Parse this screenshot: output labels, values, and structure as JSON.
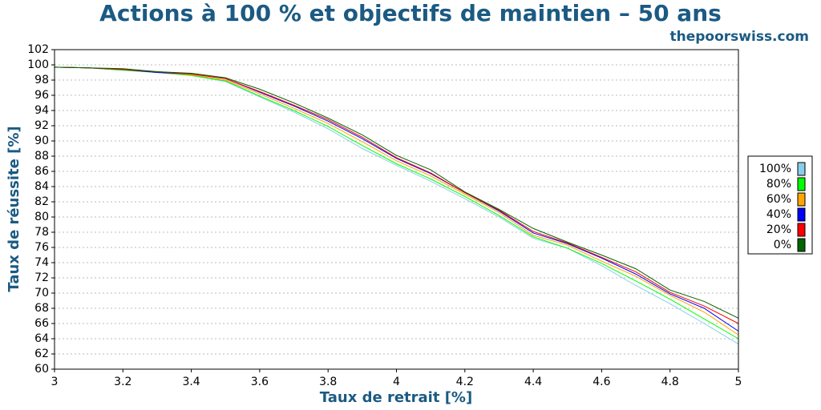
{
  "chart_data": {
    "type": "line",
    "title": "Actions à 100 % et objectifs de maintien – 50 ans",
    "subtitle": "thepoorswiss.com",
    "x_label": "Taux de retrait [%]",
    "y_label": "Taux de réussite [%]",
    "x": [
      3,
      3.1,
      3.2,
      3.3,
      3.4,
      3.5,
      3.6,
      3.7,
      3.8,
      3.9,
      4,
      4.1,
      4.2,
      4.3,
      4.4,
      4.5,
      4.6,
      4.7,
      4.8,
      4.9,
      5
    ],
    "series": [
      {
        "name": "100%",
        "color": "#87ceeb",
        "values": [
          99.7,
          99.6,
          99.3,
          99.0,
          98.6,
          97.8,
          95.8,
          93.8,
          91.6,
          89.0,
          86.8,
          84.7,
          82.4,
          80.0,
          77.2,
          75.9,
          73.6,
          71.0,
          68.6,
          66.0,
          63.3
        ]
      },
      {
        "name": "80%",
        "color": "#00ff00",
        "values": [
          99.7,
          99.6,
          99.3,
          99.0,
          98.6,
          97.9,
          95.9,
          94.0,
          91.9,
          89.4,
          87.0,
          85.0,
          82.7,
          80.2,
          77.4,
          75.9,
          73.9,
          71.6,
          69.2,
          66.6,
          64.0
        ]
      },
      {
        "name": "60%",
        "color": "#ffa500",
        "values": [
          99.7,
          99.6,
          99.4,
          99.0,
          98.7,
          98.0,
          96.2,
          94.3,
          92.3,
          89.9,
          87.4,
          85.4,
          83.0,
          80.6,
          77.6,
          76.3,
          74.2,
          72.2,
          69.7,
          67.5,
          64.5
        ]
      },
      {
        "name": "40%",
        "color": "#0000ff",
        "values": [
          99.7,
          99.6,
          99.4,
          99.0,
          98.8,
          98.2,
          96.4,
          94.6,
          92.6,
          90.3,
          87.7,
          85.7,
          83.2,
          80.8,
          77.9,
          76.5,
          74.6,
          72.5,
          69.9,
          68.0,
          65.0
        ]
      },
      {
        "name": "20%",
        "color": "#ff0000",
        "values": [
          99.7,
          99.6,
          99.4,
          99.1,
          98.8,
          98.2,
          96.5,
          94.7,
          92.8,
          90.5,
          87.8,
          85.8,
          83.2,
          80.9,
          78.1,
          76.6,
          74.7,
          72.8,
          70.1,
          68.3,
          66.0
        ]
      },
      {
        "name": "0%",
        "color": "#006400",
        "values": [
          99.7,
          99.6,
          99.5,
          99.1,
          98.9,
          98.3,
          96.8,
          95.0,
          93.0,
          90.8,
          88.1,
          86.2,
          83.3,
          81.0,
          78.5,
          76.7,
          75.0,
          73.2,
          70.4,
          68.9,
          66.7
        ]
      }
    ],
    "xlim": [
      3,
      5
    ],
    "xticks": [
      3,
      3.2,
      3.4,
      3.6,
      3.8,
      4,
      4.2,
      4.4,
      4.6,
      4.8,
      5
    ],
    "ylim": [
      60,
      102
    ],
    "yticks": [
      60,
      62,
      64,
      66,
      68,
      70,
      72,
      74,
      76,
      78,
      80,
      82,
      84,
      86,
      88,
      90,
      92,
      94,
      96,
      98,
      100,
      102
    ],
    "grid": true,
    "legend": "right"
  }
}
